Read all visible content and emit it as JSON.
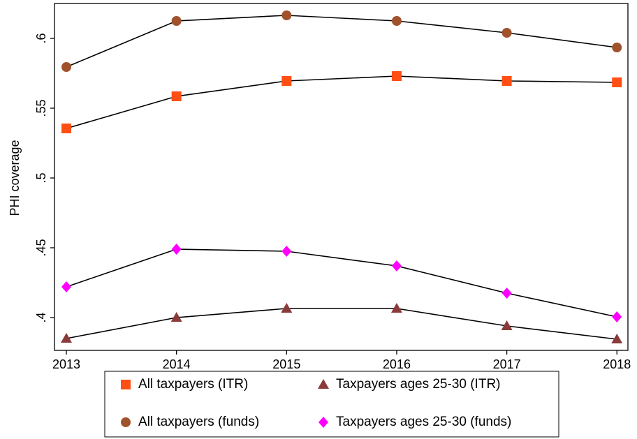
{
  "chart_data": {
    "type": "line",
    "y_label": "PHI coverage",
    "x": [
      2013,
      2014,
      2015,
      2016,
      2017,
      2018
    ],
    "xlim": [
      2012.892,
      2018.1
    ],
    "xticks": [
      2013,
      2014,
      2015,
      2016,
      2017,
      2018
    ],
    "ylim": [
      0.3765,
      0.625
    ],
    "yticks": [
      {
        "value": 0.4,
        "label": ".4"
      },
      {
        "value": 0.45,
        "label": ".45"
      },
      {
        "value": 0.5,
        "label": ".5"
      },
      {
        "value": 0.55,
        "label": ".55"
      },
      {
        "value": 0.6,
        "label": ".6"
      }
    ],
    "line_color": "#000000",
    "legend_position": "bottom",
    "series": [
      {
        "name": "All taxpayers (ITR)",
        "color": "#ff4f14",
        "marker": "square",
        "values": [
          0.5355,
          0.5585,
          0.5695,
          0.573,
          0.5695,
          0.5685
        ]
      },
      {
        "name": "Taxpayers ages 25-30 (ITR)",
        "color": "#8b3a3a",
        "marker": "triangle",
        "values": [
          0.385,
          0.4,
          0.4065,
          0.4065,
          0.394,
          0.3845
        ]
      },
      {
        "name": "All taxpayers (funds)",
        "color": "#a0522d",
        "marker": "circle",
        "values": [
          0.5795,
          0.6125,
          0.6165,
          0.6125,
          0.604,
          0.5935
        ]
      },
      {
        "name": "Taxpayers ages 25-30 (funds)",
        "color": "#ff00ff",
        "marker": "diamond",
        "values": [
          0.422,
          0.449,
          0.4475,
          0.437,
          0.4175,
          0.4005
        ]
      }
    ]
  }
}
